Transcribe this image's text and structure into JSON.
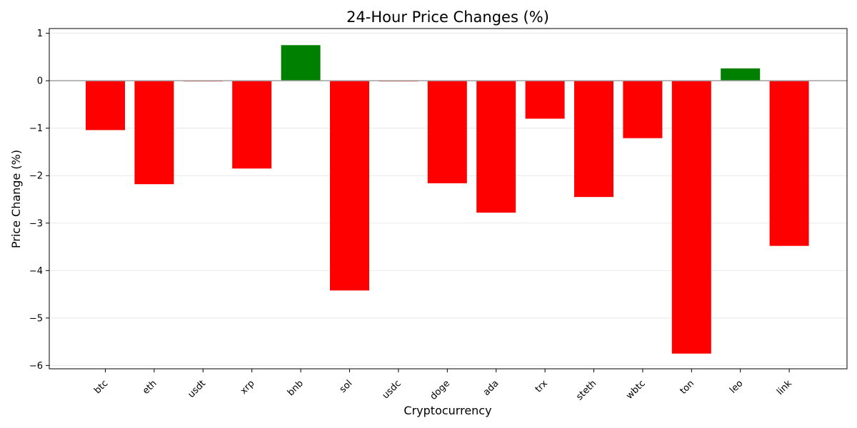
{
  "chart_data": {
    "type": "bar",
    "title": "24-Hour Price Changes (%)",
    "xlabel": "Cryptocurrency",
    "ylabel": "Price Change (%)",
    "categories": [
      "btc",
      "eth",
      "usdt",
      "xrp",
      "bnb",
      "sol",
      "usdc",
      "doge",
      "ada",
      "trx",
      "steth",
      "wbtc",
      "ton",
      "leo",
      "link"
    ],
    "values": [
      -1.04,
      -2.18,
      -0.01,
      -1.85,
      0.75,
      -4.42,
      -0.01,
      -2.16,
      -2.78,
      -0.8,
      -2.45,
      -1.21,
      -5.75,
      0.26,
      -3.48
    ],
    "ylim": [
      -6.07,
      1.1
    ],
    "yticks": [
      1,
      0,
      -1,
      -2,
      -3,
      -4,
      -5,
      -6
    ],
    "ytick_labels": [
      "1",
      "0",
      "−1",
      "−2",
      "−3",
      "−4",
      "−5",
      "−6"
    ],
    "grid": "y",
    "colors": {
      "positive": "#008000",
      "negative": "#ff0000",
      "zero_line": "#a0a0a0",
      "grid": "#e8e8e8"
    }
  }
}
